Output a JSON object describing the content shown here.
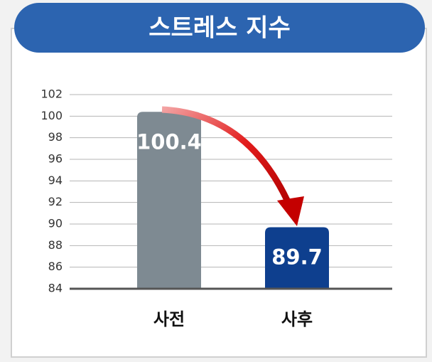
{
  "chart_data": {
    "type": "bar",
    "title": "스트레스 지수",
    "categories": [
      "사전",
      "사후"
    ],
    "values": [
      100.4,
      89.7
    ],
    "colors": [
      "#7e8a92",
      "#0e3f8e"
    ],
    "ylim": [
      84,
      102
    ],
    "yticks": [
      84,
      86,
      88,
      90,
      92,
      94,
      96,
      98,
      100,
      102
    ],
    "grid": true
  }
}
